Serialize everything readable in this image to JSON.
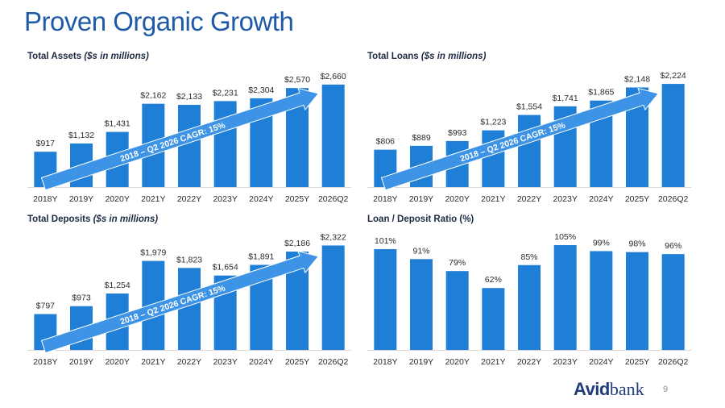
{
  "page": {
    "title": "Proven Organic Growth",
    "page_number": "9",
    "logo": {
      "part1": "Avid",
      "part2": "bank"
    }
  },
  "colors": {
    "bar": "#1f7ed6",
    "arrow": "#3d93e6",
    "title": "#1e5aa8",
    "text": "#2b2b2b"
  },
  "chart_data": [
    {
      "type": "bar",
      "title": "Total Assets",
      "title_unit": "($s in millions)",
      "categories": [
        "2018Y",
        "2019Y",
        "2020Y",
        "2021Y",
        "2022Y",
        "2023Y",
        "2024Y",
        "2025Y",
        "2026Q2"
      ],
      "values": [
        917,
        1132,
        1431,
        2162,
        2133,
        2231,
        2304,
        2570,
        2660
      ],
      "data_labels": [
        "$917",
        "$1,132",
        "$1,431",
        "$2,162",
        "$2,133",
        "$2,231",
        "$2,304",
        "$2,570",
        "$2,660"
      ],
      "ylim": [
        0,
        2720
      ],
      "annotation": "2018 – Q2 2026 CAGR: 15%"
    },
    {
      "type": "bar",
      "title": "Total Loans",
      "title_unit": "($s in millions)",
      "categories": [
        "2018Y",
        "2019Y",
        "2020Y",
        "2021Y",
        "2022Y",
        "2023Y",
        "2024Y",
        "2025Y",
        "2026Q2"
      ],
      "values": [
        806,
        889,
        993,
        1223,
        1554,
        1741,
        1865,
        2148,
        2224
      ],
      "data_labels": [
        "$806",
        "$889",
        "$993",
        "$1,223",
        "$1,554",
        "$1,741",
        "$1,865",
        "$2,148",
        "$2,224"
      ],
      "ylim": [
        0,
        2260
      ],
      "annotation": "2018 – Q2 2026 CAGR: 15%"
    },
    {
      "type": "bar",
      "title": "Total Deposits",
      "title_unit": "($s in millions)",
      "categories": [
        "2018Y",
        "2019Y",
        "2020Y",
        "2021Y",
        "2022Y",
        "2023Y",
        "2024Y",
        "2025Y",
        "2026Q2"
      ],
      "values": [
        797,
        973,
        1254,
        1979,
        1823,
        1654,
        1891,
        2186,
        2322
      ],
      "data_labels": [
        "$797",
        "$973",
        "$1,254",
        "$1,979",
        "$1,823",
        "$1,654",
        "$1,891",
        "$2,186",
        "$2,322"
      ],
      "ylim": [
        0,
        2330
      ],
      "annotation": "2018 – Q2 2026 CAGR: 15%"
    },
    {
      "type": "bar",
      "title": "Loan / Deposit Ratio (%)",
      "title_unit": "",
      "categories": [
        "2018Y",
        "2019Y",
        "2020Y",
        "2021Y",
        "2022Y",
        "2023Y",
        "2024Y",
        "2025Y",
        "2026Q2"
      ],
      "values": [
        101,
        91,
        79,
        62,
        85,
        105,
        99,
        98,
        96
      ],
      "data_labels": [
        "101%",
        "91%",
        "79%",
        "62%",
        "85%",
        "105%",
        "99%",
        "98%",
        "96%"
      ],
      "ylim": [
        0,
        105
      ],
      "annotation": ""
    }
  ]
}
